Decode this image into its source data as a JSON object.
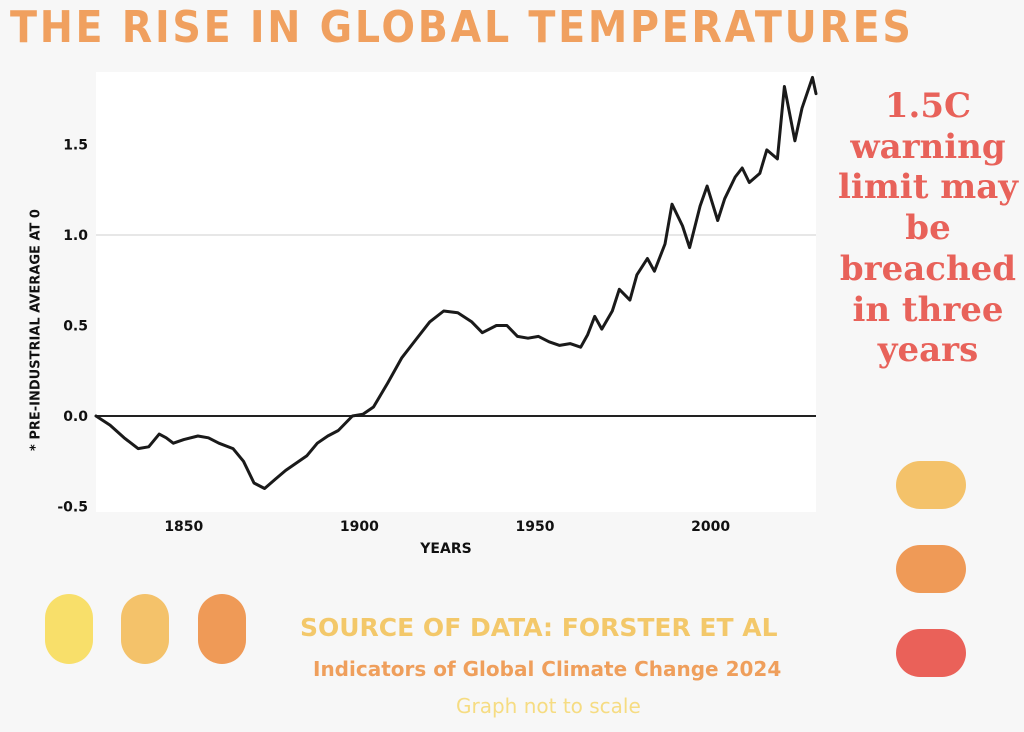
{
  "title": "THE RISE IN GLOBAL TEMPERATURES",
  "warning_text": "1.5C warning limit may be breached in three years",
  "source": "SOURCE OF DATA: FORSTER ET AL",
  "publication": "Indicators of Global Climate Change 2024",
  "note": "Graph not to scale",
  "colors": {
    "title": "#f0a05f",
    "warning": "#e8625a",
    "line": "#1a1a1a",
    "pill_yellow": "#f8df6a",
    "pill_light_orange": "#f4c26a",
    "pill_orange": "#ef9a57",
    "pill_red": "#ea6159"
  },
  "chart_data": {
    "type": "line",
    "title": "",
    "xlabel": "YEARS",
    "ylabel": "* PRE-INDUSTRIAL AVERAGE AT 0",
    "xlim": [
      1825,
      2030
    ],
    "ylim": [
      -0.5,
      1.9
    ],
    "x_ticks": [
      1850,
      1900,
      1950,
      2000
    ],
    "y_ticks": [
      -0.5,
      0.0,
      0.5,
      1.0,
      1.5
    ],
    "y_tick_labels": [
      "-0.5",
      "0.0",
      "0.5",
      "1.0",
      "1.5"
    ],
    "grid": "horizontal at 1.0",
    "series": [
      {
        "x": [
          1825,
          1829,
          1833,
          1837,
          1840,
          1843,
          1845,
          1847,
          1850,
          1854,
          1857,
          1860,
          1864,
          1867,
          1870,
          1873,
          1876,
          1879,
          1882,
          1885,
          1888,
          1891,
          1894,
          1898,
          1901,
          1904,
          1908,
          1912,
          1916,
          1920,
          1924,
          1928,
          1932,
          1935,
          1939,
          1942,
          1945,
          1948,
          1951,
          1954,
          1957,
          1960,
          1963,
          1965,
          1967,
          1969,
          1972,
          1974,
          1977,
          1979,
          1982,
          1984,
          1987,
          1989,
          1992,
          1994,
          1997,
          1999,
          2002,
          2004,
          2007,
          2009,
          2011,
          2014,
          2016,
          2019,
          2021,
          2024,
          2026,
          2029,
          2030
        ],
        "y": [
          0.0,
          -0.05,
          -0.12,
          -0.18,
          -0.17,
          -0.1,
          -0.12,
          -0.15,
          -0.13,
          -0.11,
          -0.12,
          -0.15,
          -0.18,
          -0.25,
          -0.37,
          -0.4,
          -0.35,
          -0.3,
          -0.26,
          -0.22,
          -0.15,
          -0.11,
          -0.08,
          0.0,
          0.01,
          0.05,
          0.18,
          0.32,
          0.42,
          0.52,
          0.58,
          0.57,
          0.52,
          0.46,
          0.5,
          0.5,
          0.44,
          0.43,
          0.44,
          0.41,
          0.39,
          0.4,
          0.38,
          0.45,
          0.55,
          0.48,
          0.58,
          0.7,
          0.64,
          0.78,
          0.87,
          0.8,
          0.95,
          1.17,
          1.05,
          0.93,
          1.16,
          1.27,
          1.08,
          1.2,
          1.32,
          1.37,
          1.29,
          1.34,
          1.47,
          1.42,
          1.82,
          1.52,
          1.7,
          1.87,
          1.78
        ]
      }
    ]
  }
}
